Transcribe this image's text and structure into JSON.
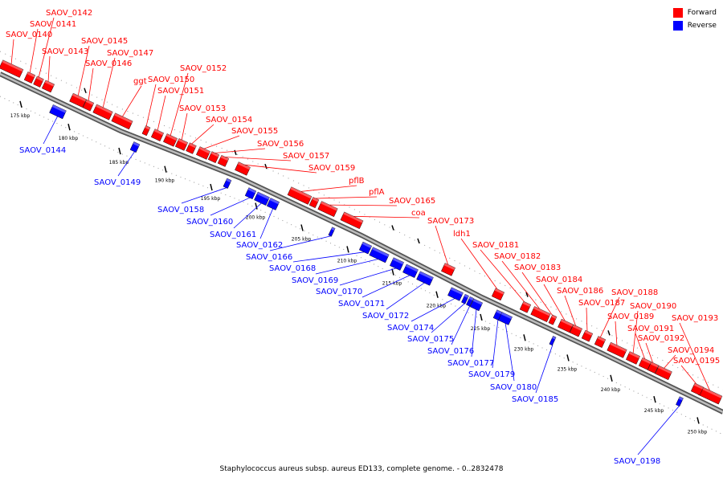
{
  "colors": {
    "forward": "#ff0000",
    "reverse": "#0000ff",
    "axis": "#777777"
  },
  "legend": {
    "forward_label": "Forward",
    "reverse_label": "Reverse"
  },
  "caption": "Staphylococcus aureus subsp. aureus ED133, complete genome. - 0..2832478",
  "axis_ticks": [
    "175 kbp",
    "180 kbp",
    "185 kbp",
    "190 kbp",
    "195 kbp",
    "200 kbp",
    "205 kbp",
    "210 kbp",
    "215 kbp",
    "220 kbp",
    "225 kbp",
    "230 kbp",
    "235 kbp",
    "240 kbp",
    "245 kbp",
    "250 kbp"
  ],
  "forward_genes": [
    "SAOV_0140",
    "SAOV_0141",
    "SAOV_0142",
    "SAOV_0143",
    "SAOV_0145",
    "SAOV_0146",
    "SAOV_0147",
    "ggt",
    "SAOV_0150",
    "SAOV_0151",
    "SAOV_0152",
    "SAOV_0153",
    "SAOV_0154",
    "SAOV_0155",
    "SAOV_0156",
    "SAOV_0157",
    "SAOV_0159",
    "pflB",
    "pflA",
    "SAOV_0165",
    "coa",
    "SAOV_0173",
    "ldh1",
    "SAOV_0181",
    "SAOV_0182",
    "SAOV_0183",
    "SAOV_0184",
    "SAOV_0186",
    "SAOV_0187",
    "SAOV_0188",
    "SAOV_0189",
    "SAOV_0190",
    "SAOV_0191",
    "SAOV_0192",
    "SAOV_0193",
    "SAOV_0194",
    "SAOV_0195"
  ],
  "reverse_genes": [
    "SAOV_0144",
    "SAOV_0149",
    "SAOV_0158",
    "SAOV_0160",
    "SAOV_0161",
    "SAOV_0162",
    "SAOV_0166",
    "SAOV_0168",
    "SAOV_0169",
    "SAOV_0170",
    "SAOV_0171",
    "SAOV_0172",
    "SAOV_0174",
    "SAOV_0175",
    "SAOV_0176",
    "SAOV_0177",
    "SAOV_0179",
    "SAOV_0180",
    "SAOV_0185",
    "SAOV_0198"
  ]
}
